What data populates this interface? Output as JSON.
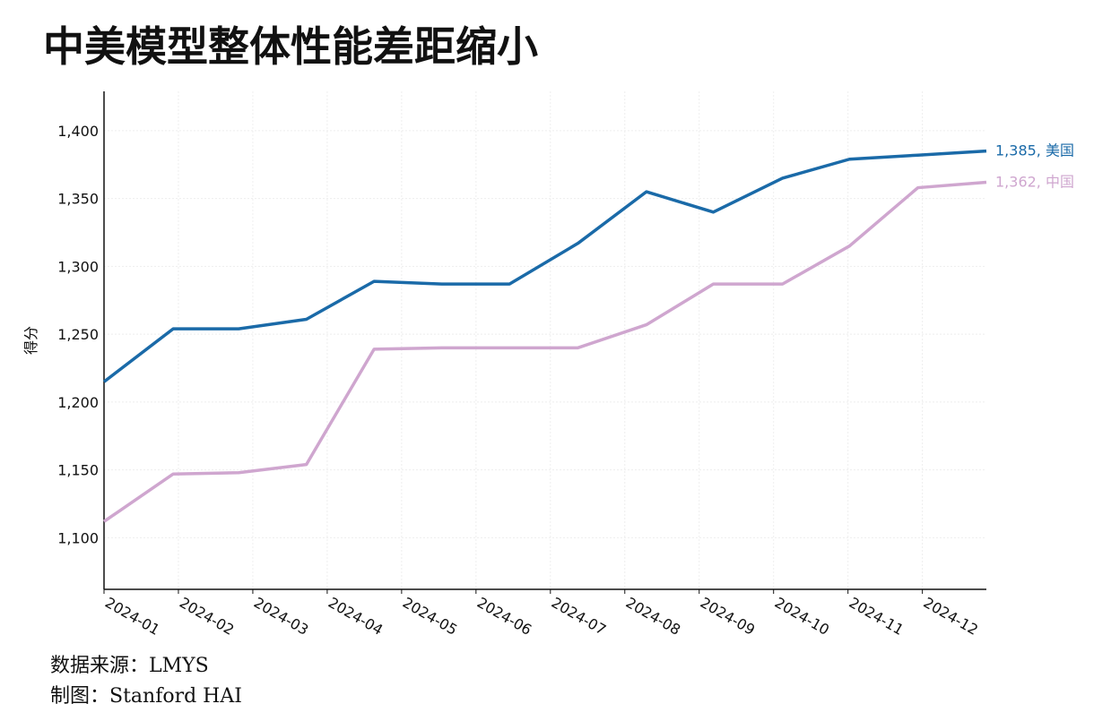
{
  "chart_data": {
    "type": "line",
    "title": "中美模型整体性能差距缩小",
    "y_label": "得分",
    "source": "数据来源：LMYS",
    "credit": "制图：Stanford HAI",
    "x": [
      1,
      1.93,
      2.81,
      3.72,
      4.63,
      5.54,
      6.45,
      7.37,
      8.29,
      9.19,
      10.12,
      11.02,
      11.94,
      12.86
    ],
    "xlim": [
      1,
      12.86
    ],
    "xticks": [
      {
        "value": 1,
        "label": "2024-01"
      },
      {
        "value": 2,
        "label": "2024-02"
      },
      {
        "value": 3,
        "label": "2024-03"
      },
      {
        "value": 4,
        "label": "2024-04"
      },
      {
        "value": 5,
        "label": "2024-05"
      },
      {
        "value": 6,
        "label": "2024-06"
      },
      {
        "value": 7,
        "label": "2024-07"
      },
      {
        "value": 8,
        "label": "2024-08"
      },
      {
        "value": 9,
        "label": "2024-09"
      },
      {
        "value": 10,
        "label": "2024-10"
      },
      {
        "value": 11,
        "label": "2024-11"
      },
      {
        "value": 12,
        "label": "2024-12"
      }
    ],
    "ylim": [
      1062,
      1429
    ],
    "yticks": [
      {
        "value": 1100,
        "label": "1,100"
      },
      {
        "value": 1150,
        "label": "1,150"
      },
      {
        "value": 1200,
        "label": "1,200"
      },
      {
        "value": 1250,
        "label": "1,250"
      },
      {
        "value": 1300,
        "label": "1,300"
      },
      {
        "value": 1350,
        "label": "1,350"
      },
      {
        "value": 1400,
        "label": "1,400"
      }
    ],
    "grid": true,
    "series": [
      {
        "name": "美国",
        "color": "#1a6aa8",
        "values": [
          1215,
          1254,
          1254,
          1261,
          1289,
          1287,
          1287,
          1317,
          1355,
          1340,
          1365,
          1379,
          1382,
          1385
        ],
        "value_labels": [
          null,
          null,
          null,
          null,
          null,
          null,
          null,
          null,
          null,
          null,
          null,
          null,
          null,
          "1,385, 美国"
        ]
      },
      {
        "name": "中国",
        "color": "#cfa6cf",
        "values": [
          1112,
          1147,
          1148,
          1154,
          1239,
          1240,
          1240,
          1240,
          1257,
          1287,
          1287,
          1315,
          1358,
          1362
        ],
        "value_labels": [
          null,
          null,
          null,
          null,
          null,
          null,
          null,
          null,
          null,
          null,
          null,
          null,
          null,
          "1,362, 中国"
        ]
      }
    ]
  }
}
